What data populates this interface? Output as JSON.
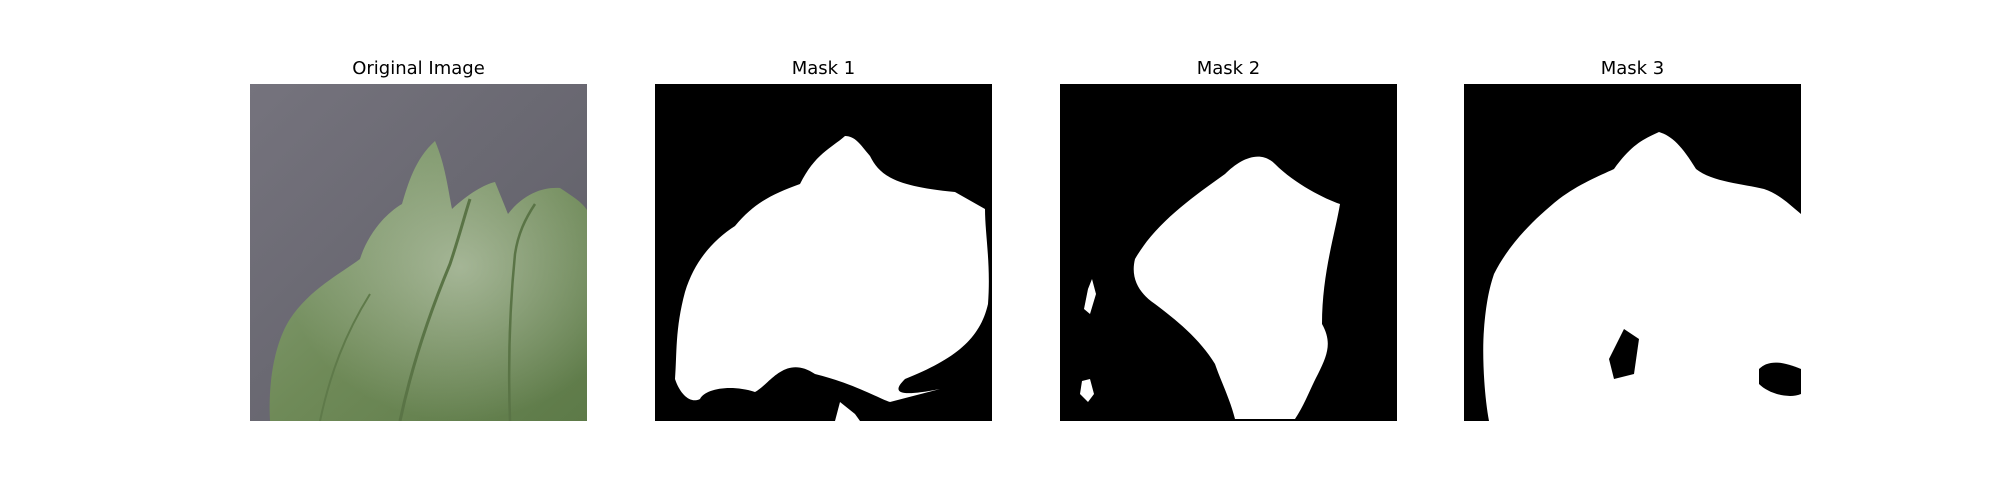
{
  "figure": {
    "panels": [
      {
        "title": "Original Image",
        "kind": "photo",
        "subject": "green-leaf-on-gray-surface"
      },
      {
        "title": "Mask 1",
        "kind": "binary-mask"
      },
      {
        "title": "Mask 2",
        "kind": "binary-mask"
      },
      {
        "title": "Mask 3",
        "kind": "binary-mask"
      }
    ]
  },
  "colors": {
    "background": "#ffffff",
    "mask_background": "#000000",
    "mask_foreground": "#ffffff",
    "surface_gray": "#6b6a74",
    "leaf_green": "#6f8a58",
    "leaf_light": "#a7b89a"
  }
}
